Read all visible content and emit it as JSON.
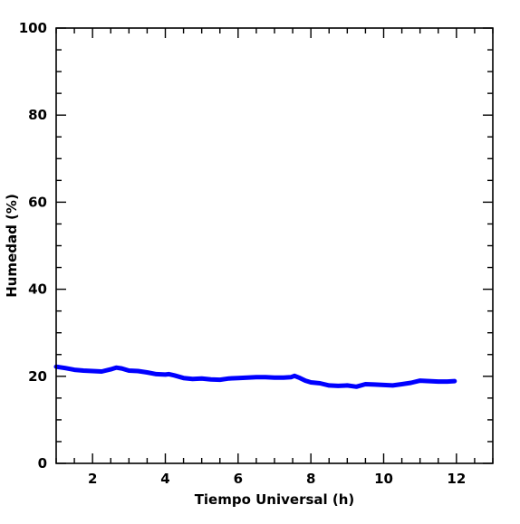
{
  "chart_data": {
    "type": "line",
    "title": "",
    "xlabel": "Tiempo Universal (h)",
    "ylabel": "Humedad (%)",
    "xlim": [
      1,
      13
    ],
    "ylim": [
      0,
      100
    ],
    "x_ticks": [
      {
        "value": 2,
        "label": "2"
      },
      {
        "value": 4,
        "label": "4"
      },
      {
        "value": 6,
        "label": "6"
      },
      {
        "value": 8,
        "label": "8"
      },
      {
        "value": 10,
        "label": "10"
      },
      {
        "value": 12,
        "label": "12"
      }
    ],
    "y_ticks": [
      {
        "value": 0,
        "label": "0"
      },
      {
        "value": 20,
        "label": "20"
      },
      {
        "value": 40,
        "label": "40"
      },
      {
        "value": 60,
        "label": "60"
      },
      {
        "value": 80,
        "label": "80"
      },
      {
        "value": 100,
        "label": "100"
      }
    ],
    "x_minor_step": 0.5,
    "y_minor_step": 5,
    "grid": false,
    "series": [
      {
        "color": "#0000ff",
        "x": [
          1.0,
          1.25,
          1.5,
          1.75,
          2.0,
          2.25,
          2.5,
          2.65,
          2.8,
          3.0,
          3.25,
          3.5,
          3.75,
          4.0,
          4.1,
          4.25,
          4.5,
          4.75,
          5.0,
          5.25,
          5.5,
          5.75,
          6.0,
          6.25,
          6.5,
          6.75,
          7.0,
          7.25,
          7.45,
          7.55,
          7.7,
          7.85,
          8.0,
          8.25,
          8.5,
          8.75,
          9.0,
          9.25,
          9.5,
          9.75,
          10.0,
          10.25,
          10.5,
          10.75,
          11.0,
          11.25,
          11.5,
          11.75,
          11.95
        ],
        "y": [
          22.2,
          21.9,
          21.5,
          21.3,
          21.2,
          21.1,
          21.6,
          22.0,
          21.8,
          21.3,
          21.2,
          20.9,
          20.5,
          20.4,
          20.5,
          20.2,
          19.6,
          19.4,
          19.5,
          19.3,
          19.2,
          19.5,
          19.6,
          19.7,
          19.8,
          19.8,
          19.7,
          19.7,
          19.8,
          20.1,
          19.6,
          19.0,
          18.6,
          18.4,
          17.9,
          17.8,
          17.9,
          17.6,
          18.2,
          18.1,
          18.0,
          17.9,
          18.2,
          18.5,
          19.0,
          18.9,
          18.8,
          18.8,
          18.9
        ]
      }
    ]
  }
}
